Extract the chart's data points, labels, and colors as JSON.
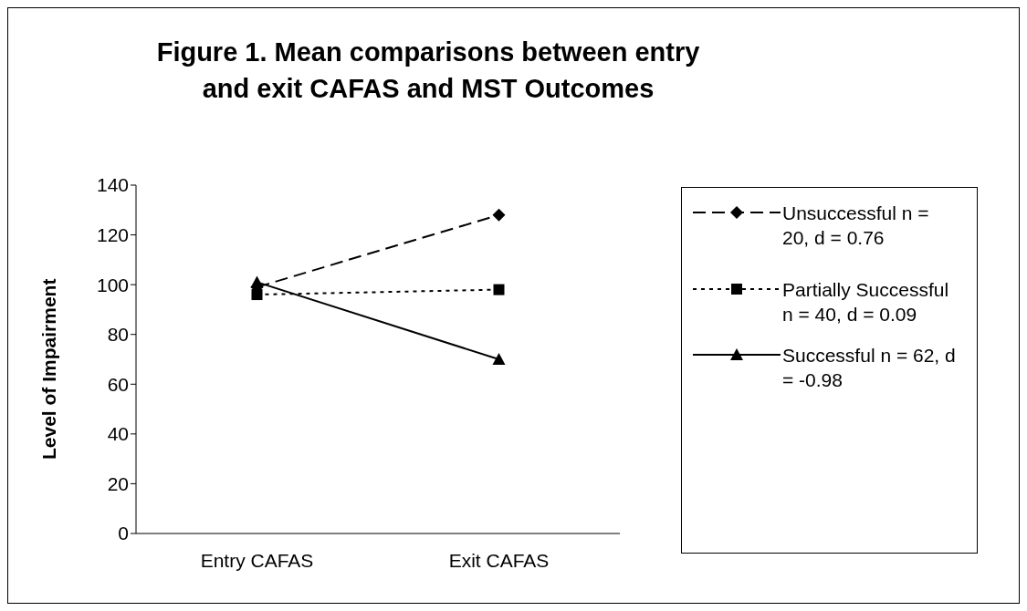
{
  "chart_data": {
    "type": "line",
    "title": "Figure 1. Mean comparisons between entry and exit CAFAS and MST Outcomes",
    "ylabel": "Level of Impairment",
    "categories": [
      "Entry CAFAS",
      "Exit CAFAS"
    ],
    "ylim": [
      0,
      140
    ],
    "yticks": [
      0,
      20,
      40,
      60,
      80,
      100,
      120,
      140
    ],
    "grid": false,
    "legend": "right",
    "series": [
      {
        "name": "Unsuccessful n = 20, d = 0.76",
        "color": "#000000",
        "values": [
          99,
          128
        ],
        "marker": "diamond",
        "line_style": "dashed"
      },
      {
        "name": "Partially Successful n = 40, d = 0.09",
        "color": "#000000",
        "values": [
          96,
          98
        ],
        "marker": "square",
        "line_style": "dotted"
      },
      {
        "name": "Successful n = 62, d = -0.98",
        "color": "#000000",
        "values": [
          101,
          70
        ],
        "marker": "triangle",
        "line_style": "solid"
      }
    ]
  }
}
